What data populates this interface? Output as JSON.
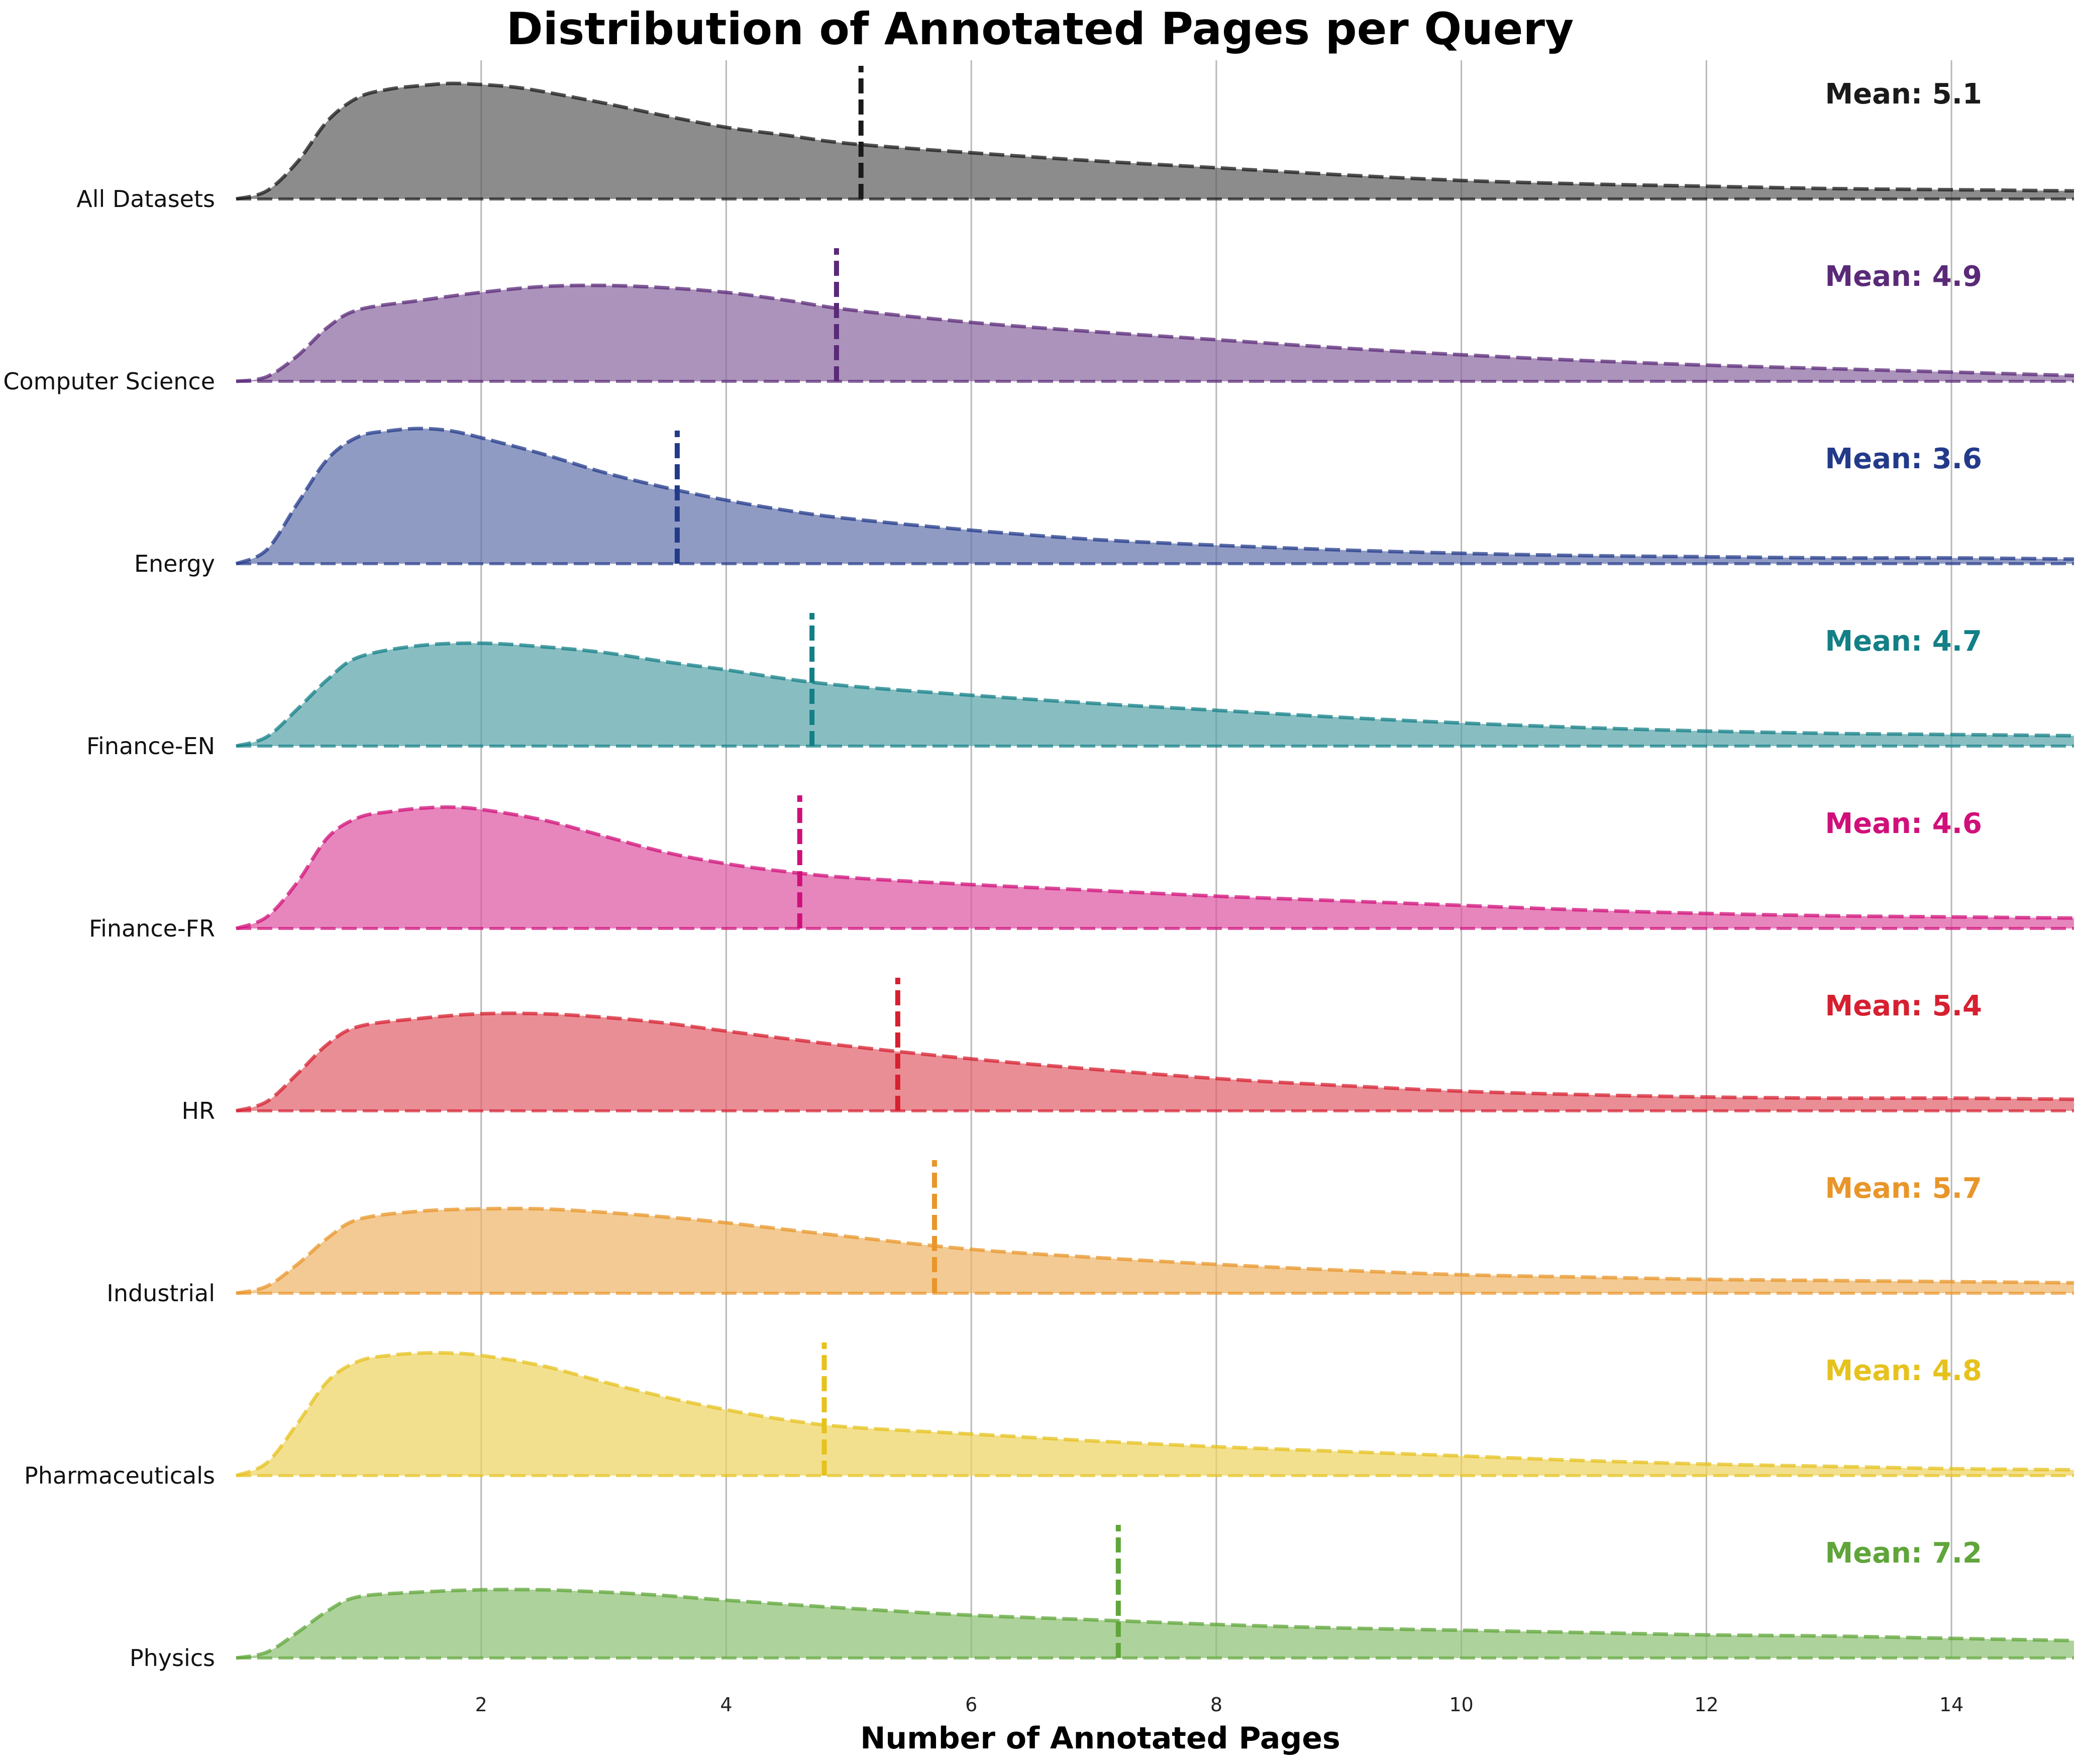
{
  "chart_data": {
    "type": "area",
    "title": "Distribution of Annotated Pages per Query",
    "xlabel": "Number of Annotated Pages",
    "ylabel": "",
    "xlim": [
      0,
      15
    ],
    "xticks": [
      2,
      4,
      6,
      8,
      10,
      12,
      14
    ],
    "grid": "vertical",
    "mean_label_prefix": "Mean: ",
    "series": [
      {
        "name": "All Datasets",
        "color": "#1a1a1a",
        "mean": 5.1,
        "mean_label": "Mean: 5.1",
        "x": [
          0.0,
          0.25,
          0.5,
          0.75,
          1.0,
          1.25,
          1.5,
          1.75,
          2.0,
          2.25,
          2.5,
          3.0,
          3.5,
          4.0,
          4.5,
          5.0,
          6.0,
          7.0,
          8.0,
          9.0,
          10.0,
          11.0,
          12.0,
          13.0,
          14.0,
          15.0
        ],
        "y": [
          0.0,
          0.07,
          0.32,
          0.68,
          0.88,
          0.95,
          0.98,
          1.0,
          0.99,
          0.97,
          0.93,
          0.83,
          0.72,
          0.62,
          0.55,
          0.48,
          0.4,
          0.33,
          0.27,
          0.21,
          0.16,
          0.13,
          0.11,
          0.09,
          0.08,
          0.07
        ]
      },
      {
        "name": "Computer Science",
        "color": "#5a2a78",
        "mean": 4.9,
        "mean_label": "Mean: 4.9",
        "x": [
          0.0,
          0.25,
          0.5,
          0.75,
          1.0,
          1.5,
          2.0,
          2.5,
          3.0,
          3.5,
          4.0,
          4.5,
          5.0,
          6.0,
          7.0,
          8.0,
          9.0,
          10.0,
          11.0,
          12.0,
          13.0,
          14.0,
          15.0
        ],
        "y": [
          0.0,
          0.04,
          0.22,
          0.47,
          0.62,
          0.7,
          0.77,
          0.82,
          0.83,
          0.81,
          0.77,
          0.7,
          0.62,
          0.51,
          0.43,
          0.36,
          0.29,
          0.23,
          0.18,
          0.14,
          0.11,
          0.08,
          0.05
        ]
      },
      {
        "name": "Energy",
        "color": "#233a8a",
        "mean": 3.6,
        "mean_label": "Mean: 3.6",
        "x": [
          0.0,
          0.25,
          0.5,
          0.75,
          1.0,
          1.25,
          1.5,
          1.75,
          2.0,
          2.5,
          3.0,
          3.5,
          4.0,
          4.5,
          5.0,
          6.0,
          7.0,
          8.0,
          9.0,
          10.0,
          11.0,
          12.0,
          13.0,
          14.0,
          15.0
        ],
        "y": [
          0.0,
          0.12,
          0.52,
          0.91,
          1.1,
          1.15,
          1.17,
          1.15,
          1.09,
          0.95,
          0.79,
          0.66,
          0.55,
          0.46,
          0.39,
          0.29,
          0.21,
          0.16,
          0.12,
          0.09,
          0.07,
          0.06,
          0.05,
          0.05,
          0.04
        ]
      },
      {
        "name": "Finance-EN",
        "color": "#137f86",
        "mean": 4.7,
        "mean_label": "Mean: 4.7",
        "x": [
          0.0,
          0.25,
          0.5,
          0.75,
          1.0,
          1.5,
          2.0,
          2.5,
          3.0,
          3.5,
          4.0,
          4.5,
          5.0,
          6.0,
          7.0,
          8.0,
          9.0,
          10.0,
          11.0,
          12.0,
          13.0,
          14.0,
          15.0
        ],
        "y": [
          0.0,
          0.08,
          0.32,
          0.58,
          0.77,
          0.87,
          0.89,
          0.86,
          0.81,
          0.73,
          0.66,
          0.58,
          0.52,
          0.44,
          0.37,
          0.31,
          0.25,
          0.2,
          0.16,
          0.13,
          0.11,
          0.1,
          0.09
        ]
      },
      {
        "name": "Finance-FR",
        "color": "#d0107a",
        "mean": 4.6,
        "mean_label": "Mean: 4.6",
        "x": [
          0.0,
          0.25,
          0.5,
          0.75,
          1.0,
          1.25,
          1.5,
          1.75,
          2.0,
          2.5,
          3.0,
          3.5,
          4.0,
          4.5,
          5.0,
          6.0,
          7.0,
          8.0,
          9.0,
          10.0,
          11.0,
          12.0,
          13.0,
          14.0,
          15.0
        ],
        "y": [
          0.0,
          0.1,
          0.4,
          0.79,
          0.96,
          1.01,
          1.04,
          1.05,
          1.03,
          0.94,
          0.8,
          0.66,
          0.56,
          0.49,
          0.44,
          0.38,
          0.33,
          0.28,
          0.24,
          0.2,
          0.16,
          0.13,
          0.11,
          0.1,
          0.09
        ]
      },
      {
        "name": "HR",
        "color": "#d62030",
        "mean": 5.4,
        "mean_label": "Mean: 5.4",
        "x": [
          0.0,
          0.25,
          0.5,
          0.75,
          1.0,
          1.5,
          2.0,
          2.5,
          3.0,
          3.5,
          4.0,
          5.0,
          6.0,
          7.0,
          8.0,
          9.0,
          10.0,
          11.0,
          12.0,
          13.0,
          14.0,
          15.0
        ],
        "y": [
          0.0,
          0.08,
          0.32,
          0.58,
          0.73,
          0.8,
          0.84,
          0.84,
          0.81,
          0.76,
          0.69,
          0.56,
          0.45,
          0.36,
          0.28,
          0.22,
          0.17,
          0.14,
          0.12,
          0.11,
          0.11,
          0.1
        ]
      },
      {
        "name": "Industrial",
        "color": "#e8962a",
        "mean": 5.7,
        "mean_label": "Mean: 5.7",
        "x": [
          0.0,
          0.25,
          0.5,
          0.75,
          1.0,
          1.5,
          2.0,
          2.5,
          3.0,
          3.5,
          4.0,
          5.0,
          6.0,
          7.0,
          8.0,
          9.0,
          10.0,
          11.0,
          12.0,
          13.0,
          14.0,
          15.0
        ],
        "y": [
          0.0,
          0.06,
          0.25,
          0.48,
          0.64,
          0.71,
          0.73,
          0.73,
          0.7,
          0.66,
          0.61,
          0.49,
          0.38,
          0.31,
          0.25,
          0.2,
          0.16,
          0.14,
          0.12,
          0.11,
          0.1,
          0.09
        ]
      },
      {
        "name": "Pharmaceuticals",
        "color": "#e6c21e",
        "mean": 4.8,
        "mean_label": "Mean: 4.8",
        "x": [
          0.0,
          0.25,
          0.5,
          0.75,
          1.0,
          1.25,
          1.5,
          1.75,
          2.0,
          2.5,
          3.0,
          3.5,
          4.0,
          4.5,
          5.0,
          6.0,
          7.0,
          8.0,
          9.0,
          10.0,
          11.0,
          12.0,
          13.0,
          14.0,
          15.0
        ],
        "y": [
          0.0,
          0.11,
          0.45,
          0.82,
          0.99,
          1.04,
          1.06,
          1.06,
          1.04,
          0.95,
          0.81,
          0.68,
          0.57,
          0.48,
          0.42,
          0.36,
          0.3,
          0.25,
          0.21,
          0.17,
          0.13,
          0.1,
          0.08,
          0.06,
          0.05
        ]
      },
      {
        "name": "Physics",
        "color": "#5fa53a",
        "mean": 7.2,
        "mean_label": "Mean: 7.2",
        "x": [
          0.0,
          0.25,
          0.5,
          0.75,
          1.0,
          1.5,
          2.0,
          2.5,
          3.0,
          3.5,
          4.0,
          5.0,
          6.0,
          7.0,
          8.0,
          9.0,
          10.0,
          11.0,
          12.0,
          13.0,
          14.0,
          15.0
        ],
        "y": [
          0.0,
          0.05,
          0.22,
          0.41,
          0.53,
          0.57,
          0.59,
          0.59,
          0.57,
          0.54,
          0.5,
          0.43,
          0.37,
          0.33,
          0.29,
          0.26,
          0.24,
          0.22,
          0.2,
          0.19,
          0.17,
          0.15
        ]
      }
    ]
  }
}
